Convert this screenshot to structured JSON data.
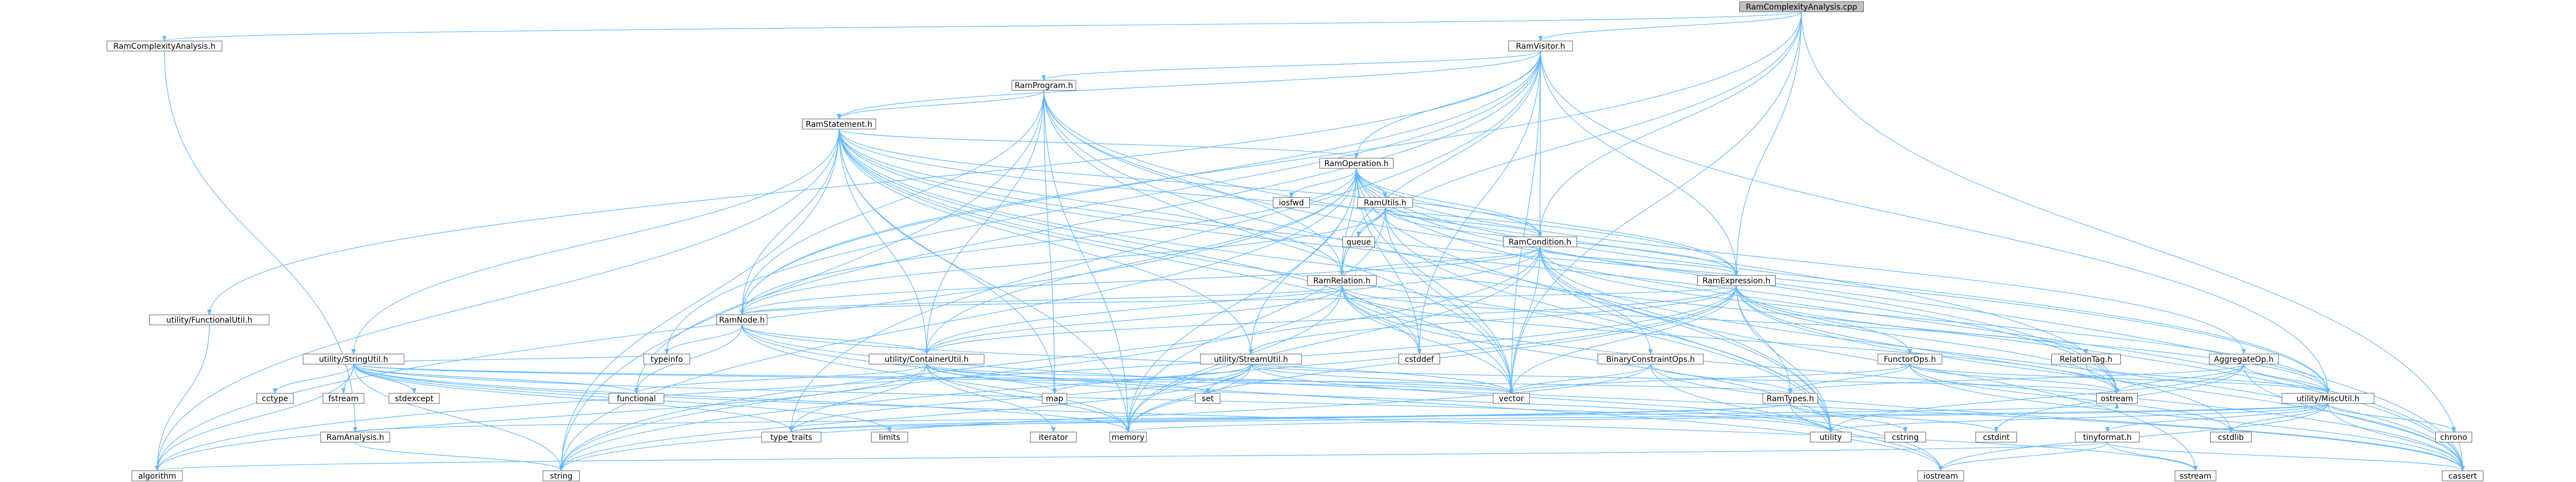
{
  "colors": {
    "node_fill": "#ffffff",
    "root_fill": "#bfbfbf",
    "node_border": "#666666",
    "edge": "#63b8ff"
  },
  "nodes": [
    {
      "id": "RamComplexityAnalysis_cpp",
      "label": "RamComplexityAnalysis.cpp",
      "root": true
    },
    {
      "id": "RamComplexityAnalysis_h",
      "label": "RamComplexityAnalysis.h"
    },
    {
      "id": "RamVisitor_h",
      "label": "RamVisitor.h"
    },
    {
      "id": "RamProgram_h",
      "label": "RamProgram.h"
    },
    {
      "id": "RamStatement_h",
      "label": "RamStatement.h"
    },
    {
      "id": "RamOperation_h",
      "label": "RamOperation.h"
    },
    {
      "id": "RamUtils_h",
      "label": "RamUtils.h"
    },
    {
      "id": "RamCondition_h",
      "label": "RamCondition.h"
    },
    {
      "id": "RamRelation_h",
      "label": "RamRelation.h"
    },
    {
      "id": "RamExpression_h",
      "label": "RamExpression.h"
    },
    {
      "id": "RamNode_h",
      "label": "RamNode.h"
    },
    {
      "id": "utility_FunctionalUtil_h",
      "label": "utility/FunctionalUtil.h"
    },
    {
      "id": "utility_StringUtil_h",
      "label": "utility/StringUtil.h"
    },
    {
      "id": "utility_ContainerUtil_h",
      "label": "utility/ContainerUtil.h"
    },
    {
      "id": "utility_StreamUtil_h",
      "label": "utility/StreamUtil.h"
    },
    {
      "id": "BinaryConstraintOps_h",
      "label": "BinaryConstraintOps.h"
    },
    {
      "id": "FunctorOps_h",
      "label": "FunctorOps.h"
    },
    {
      "id": "RelationTag_h",
      "label": "RelationTag.h"
    },
    {
      "id": "AggregateOp_h",
      "label": "AggregateOp.h"
    },
    {
      "id": "RamTypes_h",
      "label": "RamTypes.h"
    },
    {
      "id": "utility_MiscUtil_h",
      "label": "utility/MiscUtil.h"
    },
    {
      "id": "tinyformat_h",
      "label": "tinyformat.h"
    },
    {
      "id": "RamAnalysis_h",
      "label": "RamAnalysis.h"
    },
    {
      "id": "iosfwd",
      "label": "iosfwd"
    },
    {
      "id": "queue",
      "label": "queue"
    },
    {
      "id": "cstddef",
      "label": "cstddef"
    },
    {
      "id": "vector",
      "label": "vector"
    },
    {
      "id": "ostream",
      "label": "ostream"
    },
    {
      "id": "map",
      "label": "map"
    },
    {
      "id": "set",
      "label": "set"
    },
    {
      "id": "iterator",
      "label": "iterator"
    },
    {
      "id": "functional",
      "label": "functional"
    },
    {
      "id": "memory",
      "label": "memory"
    },
    {
      "id": "utility",
      "label": "utility"
    },
    {
      "id": "limits",
      "label": "limits"
    },
    {
      "id": "type_traits",
      "label": "type_traits"
    },
    {
      "id": "typeinfo",
      "label": "typeinfo"
    },
    {
      "id": "cctype",
      "label": "cctype"
    },
    {
      "id": "fstream",
      "label": "fstream"
    },
    {
      "id": "stdexcept",
      "label": "stdexcept"
    },
    {
      "id": "cstring",
      "label": "cstring"
    },
    {
      "id": "cstdint",
      "label": "cstdint"
    },
    {
      "id": "cstdlib",
      "label": "cstdlib"
    },
    {
      "id": "chrono",
      "label": "chrono"
    },
    {
      "id": "algorithm",
      "label": "algorithm"
    },
    {
      "id": "string",
      "label": "string"
    },
    {
      "id": "iostream",
      "label": "iostream"
    },
    {
      "id": "sstream",
      "label": "sstream"
    },
    {
      "id": "cassert",
      "label": "cassert"
    }
  ],
  "edges": [
    [
      "RamComplexityAnalysis_cpp",
      "RamComplexityAnalysis_h"
    ],
    [
      "RamComplexityAnalysis_cpp",
      "RamVisitor_h"
    ],
    [
      "RamComplexityAnalysis_cpp",
      "RamNode_h"
    ],
    [
      "RamComplexityAnalysis_cpp",
      "RamCondition_h"
    ],
    [
      "RamComplexityAnalysis_cpp",
      "RamExpression_h"
    ],
    [
      "RamComplexityAnalysis_cpp",
      "RamRelation_h"
    ],
    [
      "RamComplexityAnalysis_cpp",
      "vector"
    ],
    [
      "RamComplexityAnalysis_cpp",
      "cassert"
    ],
    [
      "RamComplexityAnalysis_h",
      "RamAnalysis_h"
    ],
    [
      "RamVisitor_h",
      "RamProgram_h"
    ],
    [
      "RamVisitor_h",
      "RamStatement_h"
    ],
    [
      "RamVisitor_h",
      "RamOperation_h"
    ],
    [
      "RamVisitor_h",
      "RamCondition_h"
    ],
    [
      "RamVisitor_h",
      "RamExpression_h"
    ],
    [
      "RamVisitor_h",
      "RamRelation_h"
    ],
    [
      "RamVisitor_h",
      "RamNode_h"
    ],
    [
      "RamVisitor_h",
      "utility_FunctionalUtil_h"
    ],
    [
      "RamVisitor_h",
      "utility_MiscUtil_h"
    ],
    [
      "RamVisitor_h",
      "functional"
    ],
    [
      "RamVisitor_h",
      "typeinfo"
    ],
    [
      "RamVisitor_h",
      "type_traits"
    ],
    [
      "RamVisitor_h",
      "vector"
    ],
    [
      "RamVisitor_h",
      "cstddef"
    ],
    [
      "RamProgram_h",
      "RamStatement_h"
    ],
    [
      "RamProgram_h",
      "RamRelation_h"
    ],
    [
      "RamProgram_h",
      "RamNode_h"
    ],
    [
      "RamProgram_h",
      "utility_ContainerUtil_h"
    ],
    [
      "RamProgram_h",
      "map"
    ],
    [
      "RamProgram_h",
      "memory"
    ],
    [
      "RamProgram_h",
      "ostream"
    ],
    [
      "RamProgram_h",
      "string"
    ],
    [
      "RamProgram_h",
      "utility"
    ],
    [
      "RamProgram_h",
      "vector"
    ],
    [
      "RamProgram_h",
      "cassert"
    ],
    [
      "RamStatement_h",
      "RamOperation_h"
    ],
    [
      "RamStatement_h",
      "RamCondition_h"
    ],
    [
      "RamStatement_h",
      "RamExpression_h"
    ],
    [
      "RamStatement_h",
      "RamRelation_h"
    ],
    [
      "RamStatement_h",
      "RamNode_h"
    ],
    [
      "RamStatement_h",
      "utility_ContainerUtil_h"
    ],
    [
      "RamStatement_h",
      "utility_StreamUtil_h"
    ],
    [
      "RamStatement_h",
      "utility_StringUtil_h"
    ],
    [
      "RamStatement_h",
      "utility_MiscUtil_h"
    ],
    [
      "RamStatement_h",
      "map"
    ],
    [
      "RamStatement_h",
      "cstddef"
    ],
    [
      "RamStatement_h",
      "memory"
    ],
    [
      "RamStatement_h",
      "ostream"
    ],
    [
      "RamStatement_h",
      "string"
    ],
    [
      "RamStatement_h",
      "utility"
    ],
    [
      "RamStatement_h",
      "vector"
    ],
    [
      "RamStatement_h",
      "algorithm"
    ],
    [
      "RamStatement_h",
      "cassert"
    ],
    [
      "RamOperation_h",
      "RamUtils_h"
    ],
    [
      "RamOperation_h",
      "RamCondition_h"
    ],
    [
      "RamOperation_h",
      "RamExpression_h"
    ],
    [
      "RamOperation_h",
      "RamRelation_h"
    ],
    [
      "RamOperation_h",
      "RamNode_h"
    ],
    [
      "RamOperation_h",
      "AggregateOp_h"
    ],
    [
      "RamOperation_h",
      "utility_ContainerUtil_h"
    ],
    [
      "RamOperation_h",
      "utility_StreamUtil_h"
    ],
    [
      "RamOperation_h",
      "utility_MiscUtil_h"
    ],
    [
      "RamOperation_h",
      "iosfwd"
    ],
    [
      "RamOperation_h",
      "cstddef"
    ],
    [
      "RamOperation_h",
      "memory"
    ],
    [
      "RamOperation_h",
      "ostream"
    ],
    [
      "RamOperation_h",
      "string"
    ],
    [
      "RamOperation_h",
      "utility"
    ],
    [
      "RamOperation_h",
      "vector"
    ],
    [
      "RamOperation_h",
      "cassert"
    ],
    [
      "RamOperation_h",
      "algorithm"
    ],
    [
      "RamUtils_h",
      "RamCondition_h"
    ],
    [
      "RamUtils_h",
      "RamExpression_h"
    ],
    [
      "RamUtils_h",
      "RamNode_h"
    ],
    [
      "RamUtils_h",
      "queue"
    ],
    [
      "RamUtils_h",
      "memory"
    ],
    [
      "RamUtils_h",
      "utility"
    ],
    [
      "RamUtils_h",
      "vector"
    ],
    [
      "RamCondition_h",
      "RamExpression_h"
    ],
    [
      "RamCondition_h",
      "RamRelation_h"
    ],
    [
      "RamCondition_h",
      "RamNode_h"
    ],
    [
      "RamCondition_h",
      "BinaryConstraintOps_h"
    ],
    [
      "RamCondition_h",
      "utility_ContainerUtil_h"
    ],
    [
      "RamCondition_h",
      "utility_MiscUtil_h"
    ],
    [
      "RamCondition_h",
      "memory"
    ],
    [
      "RamCondition_h",
      "sstream"
    ],
    [
      "RamCondition_h",
      "string"
    ],
    [
      "RamCondition_h",
      "utility"
    ],
    [
      "RamCondition_h",
      "vector"
    ],
    [
      "RamCondition_h",
      "cassert"
    ],
    [
      "RamExpression_h",
      "RamNode_h"
    ],
    [
      "RamExpression_h",
      "FunctorOps_h"
    ],
    [
      "RamExpression_h",
      "RamTypes_h"
    ],
    [
      "RamExpression_h",
      "utility_ContainerUtil_h"
    ],
    [
      "RamExpression_h",
      "utility_StreamUtil_h"
    ],
    [
      "RamExpression_h",
      "utility_MiscUtil_h"
    ],
    [
      "RamExpression_h",
      "memory"
    ],
    [
      "RamExpression_h",
      "ostream"
    ],
    [
      "RamExpression_h",
      "string"
    ],
    [
      "RamExpression_h",
      "utility"
    ],
    [
      "RamExpression_h",
      "vector"
    ],
    [
      "RamExpression_h",
      "algorithm"
    ],
    [
      "RamExpression_h",
      "cassert"
    ],
    [
      "RamExpression_h",
      "cstdlib"
    ],
    [
      "RamRelation_h",
      "RamNode_h"
    ],
    [
      "RamRelation_h",
      "RelationTag_h"
    ],
    [
      "RamRelation_h",
      "utility_ContainerUtil_h"
    ],
    [
      "RamRelation_h",
      "memory"
    ],
    [
      "RamRelation_h",
      "ostream"
    ],
    [
      "RamRelation_h",
      "string"
    ],
    [
      "RamRelation_h",
      "utility"
    ],
    [
      "RamRelation_h",
      "vector"
    ],
    [
      "RamRelation_h",
      "cassert"
    ],
    [
      "RamRelation_h",
      "cstddef"
    ],
    [
      "RamNode_h",
      "utility_ContainerUtil_h"
    ],
    [
      "RamNode_h",
      "functional"
    ],
    [
      "RamNode_h",
      "memory"
    ],
    [
      "RamNode_h",
      "typeinfo"
    ],
    [
      "RamNode_h",
      "vector"
    ],
    [
      "RamNode_h",
      "cassert"
    ],
    [
      "RamNode_h",
      "iostream"
    ],
    [
      "utility_FunctionalUtil_h",
      "algorithm"
    ],
    [
      "utility_StringUtil_h",
      "RamTypes_h"
    ],
    [
      "utility_StringUtil_h",
      "cctype"
    ],
    [
      "utility_StringUtil_h",
      "fstream"
    ],
    [
      "utility_StringUtil_h",
      "stdexcept"
    ],
    [
      "utility_StringUtil_h",
      "typeinfo"
    ],
    [
      "utility_StringUtil_h",
      "functional"
    ],
    [
      "utility_StringUtil_h",
      "type_traits"
    ],
    [
      "utility_StringUtil_h",
      "limits"
    ],
    [
      "utility_StringUtil_h",
      "memory"
    ],
    [
      "utility_StringUtil_h",
      "utility"
    ],
    [
      "utility_StringUtil_h",
      "vector"
    ],
    [
      "utility_StringUtil_h",
      "algorithm"
    ],
    [
      "utility_StringUtil_h",
      "string"
    ],
    [
      "utility_StringUtil_h",
      "sstream"
    ],
    [
      "utility_ContainerUtil_h",
      "map"
    ],
    [
      "utility_ContainerUtil_h",
      "set"
    ],
    [
      "utility_ContainerUtil_h",
      "iterator"
    ],
    [
      "utility_ContainerUtil_h",
      "functional"
    ],
    [
      "utility_ContainerUtil_h",
      "memory"
    ],
    [
      "utility_ContainerUtil_h",
      "utility"
    ],
    [
      "utility_ContainerUtil_h",
      "type_traits"
    ],
    [
      "utility_ContainerUtil_h",
      "vector"
    ],
    [
      "utility_ContainerUtil_h",
      "algorithm"
    ],
    [
      "utility_StreamUtil_h",
      "map"
    ],
    [
      "utility_StreamUtil_h",
      "set"
    ],
    [
      "utility_StreamUtil_h",
      "memory"
    ],
    [
      "utility_StreamUtil_h",
      "ostream"
    ],
    [
      "utility_StreamUtil_h",
      "string"
    ],
    [
      "utility_StreamUtil_h",
      "utility"
    ],
    [
      "utility_StreamUtil_h",
      "vector"
    ],
    [
      "utility_StreamUtil_h",
      "type_traits"
    ],
    [
      "BinaryConstraintOps_h",
      "RamTypes_h"
    ],
    [
      "BinaryConstraintOps_h",
      "iostream"
    ],
    [
      "BinaryConstraintOps_h",
      "string"
    ],
    [
      "BinaryConstraintOps_h",
      "vector"
    ],
    [
      "BinaryConstraintOps_h",
      "cassert"
    ],
    [
      "FunctorOps_h",
      "RamTypes_h"
    ],
    [
      "FunctorOps_h",
      "utility_MiscUtil_h"
    ],
    [
      "FunctorOps_h",
      "cassert"
    ],
    [
      "FunctorOps_h",
      "cstdlib"
    ],
    [
      "FunctorOps_h",
      "ostream"
    ],
    [
      "FunctorOps_h",
      "vector"
    ],
    [
      "RelationTag_h",
      "utility_MiscUtil_h"
    ],
    [
      "RelationTag_h",
      "ostream"
    ],
    [
      "AggregateOp_h",
      "RamTypes_h"
    ],
    [
      "AggregateOp_h",
      "utility_MiscUtil_h"
    ],
    [
      "AggregateOp_h",
      "ostream"
    ],
    [
      "AggregateOp_h",
      "cstdint"
    ],
    [
      "AggregateOp_h",
      "utility"
    ],
    [
      "AggregateOp_h",
      "cassert"
    ],
    [
      "RamTypes_h",
      "cstdint"
    ],
    [
      "RamTypes_h",
      "cstring"
    ],
    [
      "RamTypes_h",
      "limits"
    ],
    [
      "RamTypes_h",
      "type_traits"
    ],
    [
      "RamTypes_h",
      "iostream"
    ],
    [
      "utility_MiscUtil_h",
      "tinyformat_h"
    ],
    [
      "utility_MiscUtil_h",
      "chrono"
    ],
    [
      "utility_MiscUtil_h",
      "cstdlib"
    ],
    [
      "utility_MiscUtil_h",
      "memory"
    ],
    [
      "utility_MiscUtil_h",
      "utility"
    ],
    [
      "utility_MiscUtil_h",
      "type_traits"
    ],
    [
      "utility_MiscUtil_h",
      "iostream"
    ],
    [
      "utility_MiscUtil_h",
      "cassert"
    ],
    [
      "tinyformat_h",
      "algorithm"
    ],
    [
      "tinyformat_h",
      "cassert"
    ],
    [
      "tinyformat_h",
      "iostream"
    ],
    [
      "tinyformat_h",
      "sstream"
    ],
    [
      "RamAnalysis_h",
      "string"
    ],
    [
      "RamAnalysis_h",
      "ostream"
    ]
  ]
}
